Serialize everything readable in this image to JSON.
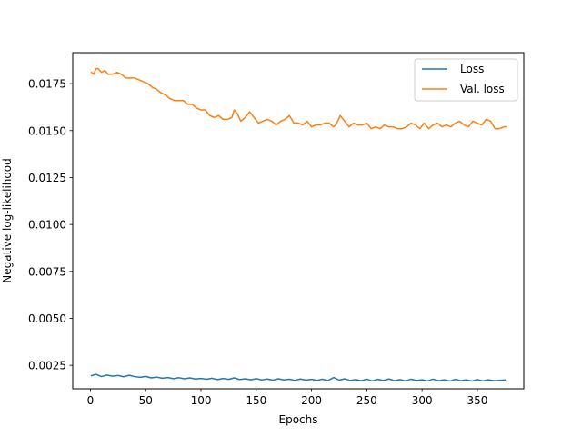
{
  "chart_data": {
    "type": "line",
    "title": "",
    "xlabel": "Epochs",
    "ylabel": "Negative log-likelihood",
    "xlim": [
      -16,
      392
    ],
    "ylim": [
      0.00125,
      0.01915
    ],
    "xticks": [
      0,
      50,
      100,
      150,
      200,
      250,
      300,
      350
    ],
    "xtick_labels": [
      "0",
      "50",
      "100",
      "150",
      "200",
      "250",
      "300",
      "350"
    ],
    "yticks": [
      0.0025,
      0.005,
      0.0075,
      0.01,
      0.0125,
      0.015,
      0.0175
    ],
    "ytick_labels": [
      "0.0025",
      "0.0050",
      "0.0075",
      "0.0100",
      "0.0125",
      "0.0150",
      "0.0175"
    ],
    "grid": false,
    "legend_position": "top-right",
    "series": [
      {
        "name": "Loss",
        "color": "#1f77b4",
        "x": [
          1,
          5,
          10,
          15,
          20,
          25,
          30,
          35,
          40,
          45,
          50,
          55,
          60,
          65,
          70,
          75,
          80,
          85,
          90,
          95,
          100,
          105,
          110,
          115,
          120,
          125,
          130,
          135,
          140,
          145,
          150,
          155,
          160,
          165,
          170,
          175,
          180,
          185,
          190,
          195,
          200,
          205,
          210,
          215,
          220,
          225,
          230,
          235,
          240,
          245,
          250,
          255,
          260,
          265,
          270,
          275,
          280,
          285,
          290,
          295,
          300,
          305,
          310,
          315,
          320,
          325,
          330,
          335,
          340,
          345,
          350,
          355,
          360,
          365,
          370,
          375
        ],
        "y": [
          0.00195,
          0.00202,
          0.0019,
          0.00198,
          0.00192,
          0.00196,
          0.00189,
          0.00197,
          0.0019,
          0.00186,
          0.00191,
          0.00183,
          0.00187,
          0.00181,
          0.00185,
          0.00179,
          0.00184,
          0.00178,
          0.00183,
          0.00177,
          0.0018,
          0.00176,
          0.00181,
          0.00174,
          0.0018,
          0.00175,
          0.00183,
          0.00174,
          0.00178,
          0.00173,
          0.00179,
          0.00172,
          0.00177,
          0.00171,
          0.00178,
          0.00172,
          0.00176,
          0.0017,
          0.00177,
          0.00171,
          0.00175,
          0.0017,
          0.00176,
          0.00169,
          0.00185,
          0.00171,
          0.00178,
          0.00169,
          0.00174,
          0.00168,
          0.00176,
          0.00167,
          0.00175,
          0.00169,
          0.00177,
          0.00168,
          0.00174,
          0.00167,
          0.00176,
          0.00169,
          0.00173,
          0.00167,
          0.00176,
          0.00168,
          0.00173,
          0.00166,
          0.00175,
          0.00168,
          0.00172,
          0.00166,
          0.00174,
          0.00167,
          0.00173,
          0.00168,
          0.0017,
          0.00172
        ]
      },
      {
        "name": "Val. loss",
        "color": "#ff7f0e",
        "x": [
          1,
          3,
          5,
          7,
          10,
          13,
          16,
          20,
          24,
          28,
          32,
          36,
          40,
          44,
          48,
          52,
          56,
          60,
          64,
          68,
          72,
          76,
          80,
          84,
          88,
          92,
          96,
          100,
          104,
          108,
          112,
          116,
          120,
          124,
          128,
          130,
          133,
          136,
          140,
          144,
          148,
          152,
          156,
          160,
          164,
          168,
          172,
          176,
          180,
          184,
          188,
          192,
          196,
          200,
          204,
          208,
          212,
          216,
          220,
          222,
          226,
          230,
          234,
          238,
          242,
          246,
          250,
          254,
          258,
          262,
          266,
          270,
          274,
          278,
          282,
          286,
          290,
          294,
          298,
          302,
          306,
          310,
          314,
          318,
          322,
          326,
          330,
          334,
          338,
          342,
          346,
          350,
          354,
          358,
          362,
          366,
          370,
          374,
          376
        ],
        "y": [
          0.0181,
          0.018,
          0.0183,
          0.0183,
          0.0181,
          0.0182,
          0.018,
          0.018,
          0.0181,
          0.018,
          0.0178,
          0.0178,
          0.0178,
          0.0177,
          0.0176,
          0.0175,
          0.0173,
          0.0172,
          0.017,
          0.0169,
          0.0167,
          0.0166,
          0.0166,
          0.0166,
          0.0164,
          0.0164,
          0.0162,
          0.0161,
          0.0161,
          0.0158,
          0.0157,
          0.0158,
          0.0156,
          0.0156,
          0.0157,
          0.0161,
          0.0159,
          0.0155,
          0.0157,
          0.016,
          0.0157,
          0.0154,
          0.0155,
          0.0156,
          0.0155,
          0.0153,
          0.0155,
          0.0156,
          0.0158,
          0.0154,
          0.0154,
          0.0153,
          0.0155,
          0.0152,
          0.0153,
          0.0153,
          0.0154,
          0.0154,
          0.0152,
          0.0153,
          0.0158,
          0.0155,
          0.0152,
          0.0154,
          0.0153,
          0.0153,
          0.0154,
          0.0151,
          0.0152,
          0.0151,
          0.0153,
          0.0152,
          0.0152,
          0.0151,
          0.0151,
          0.0152,
          0.0154,
          0.0153,
          0.0151,
          0.0154,
          0.0151,
          0.0153,
          0.0154,
          0.0152,
          0.0153,
          0.0152,
          0.0154,
          0.0155,
          0.0153,
          0.0152,
          0.0155,
          0.0154,
          0.0153,
          0.0156,
          0.0155,
          0.0151,
          0.0151,
          0.0152,
          0.0152
        ]
      }
    ]
  }
}
